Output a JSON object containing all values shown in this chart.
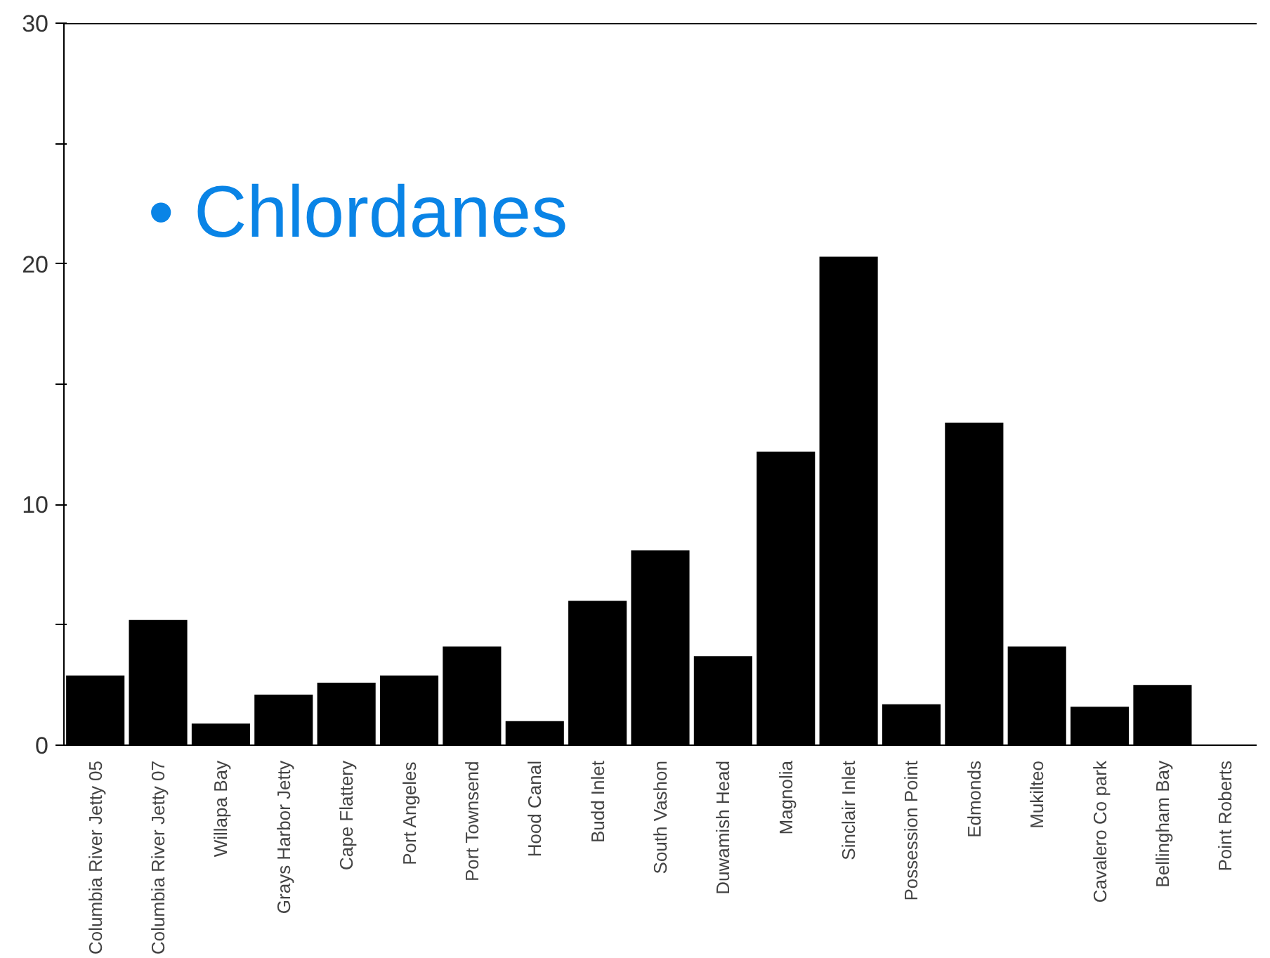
{
  "chart_data": {
    "type": "bar",
    "title": "•  Chlordanes",
    "categories": [
      "Columbia River Jetty 05",
      "Columbia River Jetty 07",
      "Willapa Bay",
      "Grays Harbor Jetty",
      "Cape Flattery",
      "Port Angeles",
      "Port Townsend",
      "Hood Canal",
      "Budd Inlet",
      "South Vashon",
      "Duwamish Head",
      "Magnolia",
      "Sinclair Inlet",
      "Possession Point",
      "Edmonds",
      "Mukilteo",
      "Cavalero Co park",
      "Bellingham Bay",
      "Point Roberts"
    ],
    "values": [
      2.9,
      5.2,
      0.9,
      2.1,
      2.6,
      2.9,
      4.1,
      1.0,
      6.0,
      8.1,
      3.7,
      12.2,
      20.3,
      1.7,
      13.4,
      4.1,
      1.6,
      2.5,
      0
    ],
    "color": "#000000",
    "ylim": [
      0,
      30
    ],
    "yticks": [
      0,
      {
        "value": 5,
        "label": null
      },
      10,
      {
        "value": 15,
        "label": null
      },
      20,
      {
        "value": 25,
        "label": null
      },
      30
    ],
    "grid": false
  }
}
